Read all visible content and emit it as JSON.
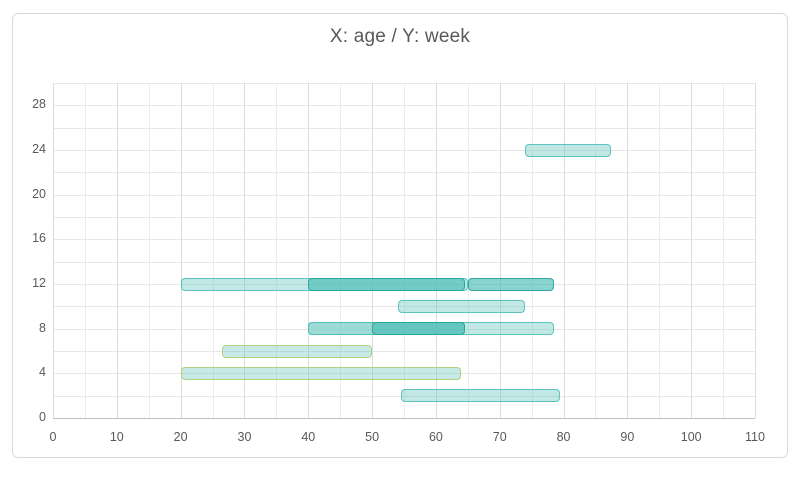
{
  "title": "X: age / Y: week",
  "colors": {
    "title_text": "#595959",
    "axis_text": "#595959",
    "frame_border": "#d9d9d9",
    "grid_minor": "#ececec",
    "grid_major": "#dcdcdc",
    "grid_horizontal": "#e7e7e7",
    "axis_line": "#bfbfbf",
    "bar_teal_light_fill": "rgba(109,199,193,0.42)",
    "bar_teal_light_stroke": "rgba(77,189,182,0.85)",
    "bar_teal_dark_fill": "rgba(64,186,178,0.62)",
    "bar_teal_dark_stroke": "rgba(38,164,157,0.9)",
    "bar_green_edge_fill": "rgba(109,199,193,0.38)",
    "bar_green_edge_stroke": "rgba(173,207,112,0.9)"
  },
  "chart_data": {
    "type": "bar",
    "orientation": "horizontal-range",
    "title": "X: age / Y: week",
    "xlabel": "age",
    "ylabel": "week",
    "x_axis": {
      "min": 0,
      "max": 110,
      "tick_step": 10,
      "minor_grid_step": 5,
      "ticks": [
        0,
        10,
        20,
        30,
        40,
        50,
        60,
        70,
        80,
        90,
        100,
        110
      ]
    },
    "y_axis": {
      "min": 0,
      "max": 30,
      "tick_step": 4,
      "grid_step": 2,
      "ticks": [
        0,
        4,
        8,
        12,
        16,
        20,
        24,
        28
      ]
    },
    "grid": true,
    "legend": false,
    "styles": {
      "light": {
        "fill": "rgba(109,199,193,0.42)",
        "stroke": "rgba(77,189,182,0.85)"
      },
      "dark": {
        "fill": "rgba(64,186,178,0.62)",
        "stroke": "rgba(38,164,157,0.9)"
      },
      "green": {
        "fill": "rgba(109,199,193,0.38)",
        "stroke": "rgba(173,207,112,0.9)"
      }
    },
    "bars": [
      {
        "week": 24,
        "start": 74,
        "end": 87.5,
        "style": "light"
      },
      {
        "week": 12,
        "start": 20,
        "end": 65,
        "style": "light"
      },
      {
        "week": 12,
        "start": 40,
        "end": 64.5,
        "style": "dark"
      },
      {
        "week": 12,
        "start": 65,
        "end": 78.5,
        "style": "dark"
      },
      {
        "week": 10,
        "start": 54,
        "end": 74,
        "style": "light"
      },
      {
        "week": 8,
        "start": 40,
        "end": 78.5,
        "style": "light"
      },
      {
        "week": 8,
        "start": 40,
        "end": 64.5,
        "style": "light"
      },
      {
        "week": 8,
        "start": 50,
        "end": 64.5,
        "style": "dark"
      },
      {
        "week": 6,
        "start": 26.5,
        "end": 50,
        "style": "green"
      },
      {
        "week": 4,
        "start": 20,
        "end": 64,
        "style": "green"
      },
      {
        "week": 2,
        "start": 54.5,
        "end": 79.5,
        "style": "light"
      }
    ]
  }
}
